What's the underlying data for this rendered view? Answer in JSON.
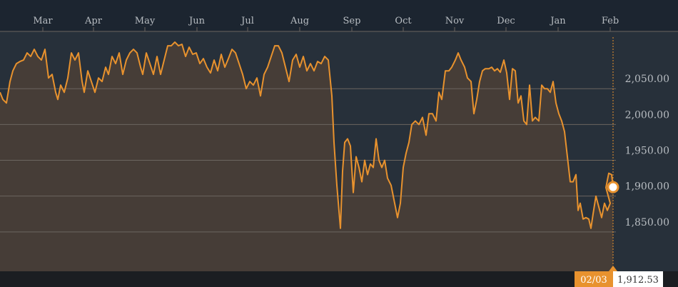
{
  "chart_data": {
    "type": "area",
    "title": "",
    "xlabel": "",
    "ylabel": "",
    "x_tick_labels": [
      "Mar",
      "Apr",
      "May",
      "Jun",
      "Jul",
      "Aug",
      "Sep",
      "Oct",
      "Nov",
      "Dec",
      "Jan",
      "Feb"
    ],
    "y_ticks": [
      1850,
      1900,
      1950,
      2000,
      2050
    ],
    "y_tick_labels": [
      "1,850.00",
      "1,900.00",
      "1,950.00",
      "2,000.00",
      "2,050.00"
    ],
    "ylim": [
      1795,
      2130
    ],
    "grid": true,
    "series": [
      {
        "color": "#e8922e",
        "points": [
          [
            0,
            2045
          ],
          [
            4,
            2035
          ],
          [
            9,
            2030
          ],
          [
            14,
            2060
          ],
          [
            18,
            2075
          ],
          [
            23,
            2085
          ],
          [
            28,
            2088
          ],
          [
            33,
            2090
          ],
          [
            38,
            2100
          ],
          [
            43,
            2095
          ],
          [
            48,
            2105
          ],
          [
            53,
            2095
          ],
          [
            58,
            2090
          ],
          [
            63,
            2105
          ],
          [
            68,
            2065
          ],
          [
            73,
            2070
          ],
          [
            78,
            2045
          ],
          [
            81,
            2035
          ],
          [
            85,
            2055
          ],
          [
            90,
            2045
          ],
          [
            95,
            2065
          ],
          [
            100,
            2100
          ],
          [
            105,
            2090
          ],
          [
            110,
            2100
          ],
          [
            115,
            2060
          ],
          [
            118,
            2045
          ],
          [
            123,
            2075
          ],
          [
            128,
            2060
          ],
          [
            133,
            2045
          ],
          [
            138,
            2065
          ],
          [
            143,
            2060
          ],
          [
            148,
            2080
          ],
          [
            152,
            2070
          ],
          [
            157,
            2095
          ],
          [
            162,
            2085
          ],
          [
            167,
            2100
          ],
          [
            172,
            2070
          ],
          [
            177,
            2090
          ],
          [
            182,
            2100
          ],
          [
            187,
            2105
          ],
          [
            192,
            2100
          ],
          [
            197,
            2080
          ],
          [
            200,
            2070
          ],
          [
            205,
            2100
          ],
          [
            210,
            2085
          ],
          [
            215,
            2070
          ],
          [
            220,
            2095
          ],
          [
            225,
            2070
          ],
          [
            230,
            2090
          ],
          [
            235,
            2110
          ],
          [
            240,
            2110
          ],
          [
            245,
            2115
          ],
          [
            250,
            2110
          ],
          [
            255,
            2112
          ],
          [
            260,
            2095
          ],
          [
            265,
            2108
          ],
          [
            270,
            2098
          ],
          [
            275,
            2100
          ],
          [
            280,
            2085
          ],
          [
            285,
            2092
          ],
          [
            290,
            2080
          ],
          [
            295,
            2072
          ],
          [
            300,
            2090
          ],
          [
            305,
            2075
          ],
          [
            310,
            2098
          ],
          [
            315,
            2080
          ],
          [
            320,
            2092
          ],
          [
            325,
            2105
          ],
          [
            330,
            2100
          ],
          [
            335,
            2085
          ],
          [
            340,
            2070
          ],
          [
            345,
            2050
          ],
          [
            350,
            2060
          ],
          [
            355,
            2055
          ],
          [
            360,
            2065
          ],
          [
            365,
            2040
          ],
          [
            370,
            2070
          ],
          [
            375,
            2080
          ],
          [
            380,
            2095
          ],
          [
            385,
            2110
          ],
          [
            390,
            2110
          ],
          [
            395,
            2100
          ],
          [
            400,
            2080
          ],
          [
            405,
            2060
          ],
          [
            410,
            2090
          ],
          [
            415,
            2098
          ],
          [
            420,
            2080
          ],
          [
            425,
            2095
          ],
          [
            430,
            2075
          ],
          [
            435,
            2085
          ],
          [
            440,
            2075
          ],
          [
            445,
            2088
          ],
          [
            450,
            2085
          ],
          [
            455,
            2095
          ],
          [
            460,
            2090
          ],
          [
            465,
            2040
          ],
          [
            468,
            1975
          ],
          [
            472,
            1915
          ],
          [
            477,
            1855
          ],
          [
            480,
            1935
          ],
          [
            483,
            1975
          ],
          [
            487,
            1980
          ],
          [
            491,
            1970
          ],
          [
            495,
            1905
          ],
          [
            499,
            1955
          ],
          [
            503,
            1940
          ],
          [
            507,
            1920
          ],
          [
            511,
            1950
          ],
          [
            515,
            1930
          ],
          [
            519,
            1945
          ],
          [
            523,
            1940
          ],
          [
            527,
            1980
          ],
          [
            531,
            1950
          ],
          [
            535,
            1940
          ],
          [
            539,
            1950
          ],
          [
            543,
            1925
          ],
          [
            548,
            1915
          ],
          [
            552,
            1895
          ],
          [
            557,
            1870
          ],
          [
            561,
            1890
          ],
          [
            565,
            1940
          ],
          [
            569,
            1960
          ],
          [
            573,
            1975
          ],
          [
            577,
            2000
          ],
          [
            582,
            2005
          ],
          [
            587,
            2000
          ],
          [
            592,
            2010
          ],
          [
            597,
            1985
          ],
          [
            601,
            2015
          ],
          [
            606,
            2015
          ],
          [
            611,
            2005
          ],
          [
            615,
            2045
          ],
          [
            619,
            2035
          ],
          [
            624,
            2075
          ],
          [
            629,
            2075
          ],
          [
            633,
            2080
          ],
          [
            638,
            2090
          ],
          [
            642,
            2100
          ],
          [
            646,
            2090
          ],
          [
            651,
            2080
          ],
          [
            655,
            2065
          ],
          [
            660,
            2060
          ],
          [
            664,
            2015
          ],
          [
            668,
            2035
          ],
          [
            672,
            2060
          ],
          [
            676,
            2075
          ],
          [
            680,
            2078
          ],
          [
            685,
            2078
          ],
          [
            689,
            2080
          ],
          [
            693,
            2075
          ],
          [
            697,
            2078
          ],
          [
            701,
            2073
          ],
          [
            706,
            2090
          ],
          [
            710,
            2072
          ],
          [
            714,
            2035
          ],
          [
            718,
            2078
          ],
          [
            722,
            2075
          ],
          [
            726,
            2030
          ],
          [
            730,
            2040
          ],
          [
            734,
            2005
          ],
          [
            738,
            2000
          ],
          [
            742,
            2055
          ],
          [
            746,
            2005
          ],
          [
            750,
            2010
          ],
          [
            755,
            2005
          ],
          [
            759,
            2055
          ],
          [
            763,
            2050
          ],
          [
            767,
            2050
          ],
          [
            771,
            2045
          ],
          [
            775,
            2060
          ],
          [
            779,
            2030
          ],
          [
            783,
            2015
          ],
          [
            787,
            2005
          ],
          [
            791,
            1990
          ],
          [
            795,
            1955
          ],
          [
            799,
            1920
          ],
          [
            803,
            1920
          ],
          [
            807,
            1930
          ],
          [
            810,
            1880
          ],
          [
            813,
            1890
          ],
          [
            817,
            1868
          ],
          [
            821,
            1870
          ],
          [
            825,
            1868
          ],
          [
            828,
            1855
          ],
          [
            831,
            1875
          ],
          [
            835,
            1900
          ],
          [
            839,
            1885
          ],
          [
            843,
            1870
          ],
          [
            847,
            1890
          ],
          [
            851,
            1880
          ],
          [
            855,
            1890
          ],
          [
            849,
            1912
          ],
          [
            853,
            1932
          ],
          [
            857,
            1930
          ],
          [
            859,
            1912.53
          ]
        ]
      }
    ],
    "tooltip": {
      "date_label": "02/03",
      "value_label": "1,912.53",
      "value": 1912.53
    }
  },
  "colors": {
    "background": "#1c2530",
    "plot_background": "#27303a",
    "line": "#e8922e",
    "area_fill": "#463d37",
    "grid": "#6b6560",
    "text": "#b8bdc2",
    "tooltip_bg": "#e8922e",
    "tooltip_value_bg": "#ffffff"
  }
}
